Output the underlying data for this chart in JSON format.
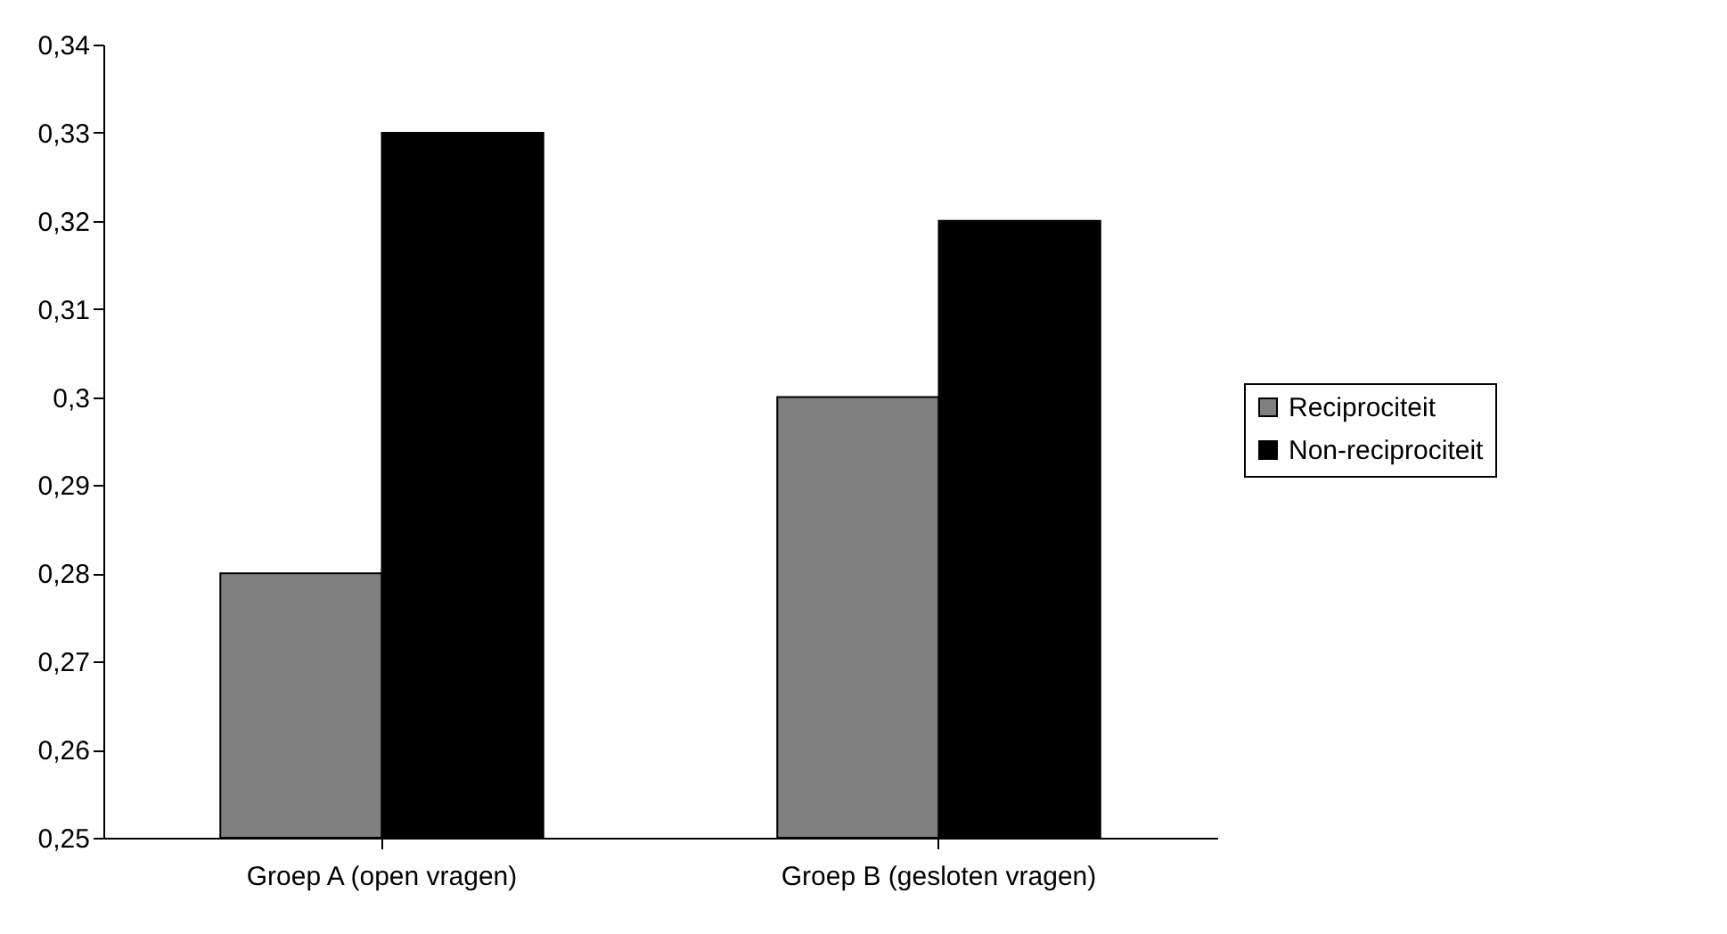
{
  "chart_data": {
    "type": "bar",
    "categories": [
      "Groep A (open vragen)",
      "Groep B (gesloten vragen)"
    ],
    "series": [
      {
        "name": "Reciprociteit",
        "color": "#808080",
        "values": [
          0.28,
          0.3
        ]
      },
      {
        "name": "Non-reciprociteit",
        "color": "#000000",
        "values": [
          0.33,
          0.32
        ]
      }
    ],
    "ylim": [
      0.25,
      0.34
    ],
    "yticks": [
      {
        "value": 0.25,
        "label": "0,25"
      },
      {
        "value": 0.26,
        "label": "0,26"
      },
      {
        "value": 0.27,
        "label": "0,27"
      },
      {
        "value": 0.28,
        "label": "0,28"
      },
      {
        "value": 0.29,
        "label": "0,29"
      },
      {
        "value": 0.3,
        "label": "0,3"
      },
      {
        "value": 0.31,
        "label": "0,31"
      },
      {
        "value": 0.32,
        "label": "0,32"
      },
      {
        "value": 0.33,
        "label": "0,33"
      },
      {
        "value": 0.34,
        "label": "0,34"
      }
    ],
    "grid": false,
    "legend": "right"
  }
}
